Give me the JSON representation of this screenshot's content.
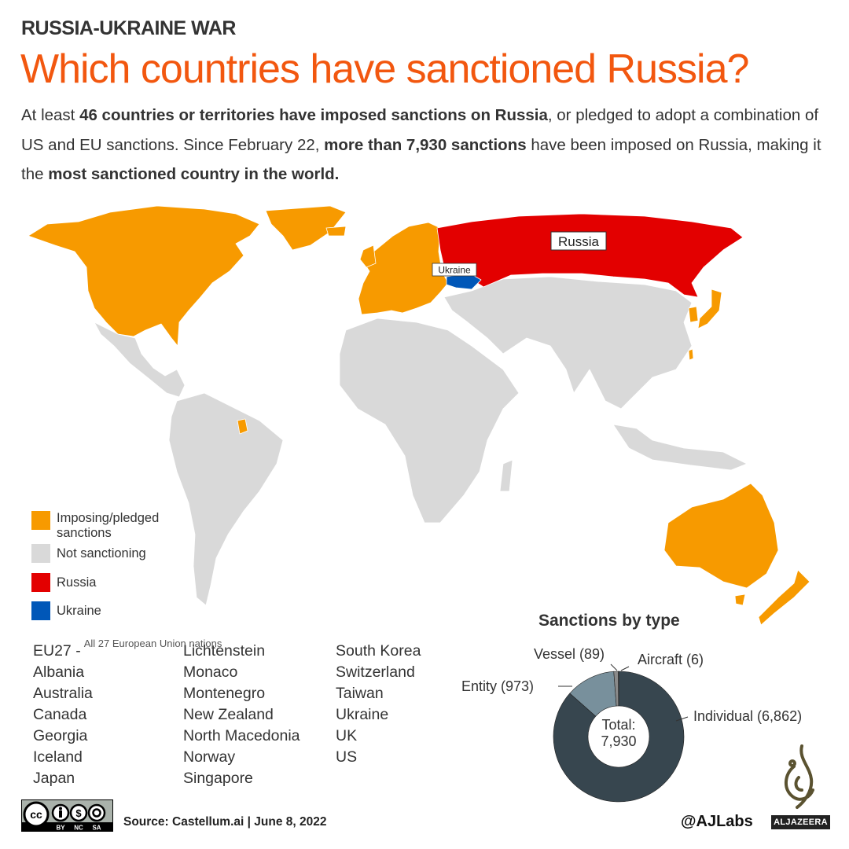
{
  "header": {
    "kicker": "RUSSIA-UKRAINE WAR",
    "title": "Which countries have sanctioned Russia?",
    "intro": [
      {
        "text": "At least ",
        "bold": false
      },
      {
        "text": "46 countries or territories have imposed sanctions on Russia",
        "bold": true
      },
      {
        "text": ", or pledged to adopt a combination of US and EU sanctions. Since February 22, ",
        "bold": false
      },
      {
        "text": "more than 7,930 sanctions",
        "bold": true
      },
      {
        "text": " have been imposed on Russia, making it the ",
        "bold": false
      },
      {
        "text": "most sanctioned country in the world.",
        "bold": true
      }
    ]
  },
  "map": {
    "labels": {
      "russia": "Russia",
      "ukraine": "Ukraine"
    },
    "colors": {
      "sanctioning": "#f79a00",
      "not_sanctioning": "#d9d9d9",
      "russia": "#e30000",
      "ukraine": "#0057b8"
    }
  },
  "legend": [
    {
      "label": "Imposing/pledged sanctions",
      "color": "#f79a00"
    },
    {
      "label": "Not sanctioning",
      "color": "#d9d9d9"
    },
    {
      "label": "Russia",
      "color": "#e30000"
    },
    {
      "label": "Ukraine",
      "color": "#0057b8"
    }
  ],
  "countries": {
    "eu_label": "EU27 -",
    "eu_note": "All 27 European Union nations",
    "col1": [
      "Albania",
      "Australia",
      "Canada",
      "Georgia",
      "Iceland",
      "Japan"
    ],
    "col2": [
      "Lichtenstein",
      "Monaco",
      "Montenegro",
      "New Zealand",
      "North Macedonia",
      "Norway",
      "Singapore"
    ],
    "col3": [
      "South Korea",
      "Switzerland",
      "Taiwan",
      "Ukraine",
      "UK",
      "US"
    ]
  },
  "chart_data": {
    "type": "pie",
    "title": "Sanctions by type",
    "total_label": "Total:",
    "total_value": "7,930",
    "slices": [
      {
        "name": "Individual",
        "value": 6862,
        "label": "Individual (6,862)",
        "color": "#37464f"
      },
      {
        "name": "Entity",
        "value": 973,
        "label": "Entity (973)",
        "color": "#78909c"
      },
      {
        "name": "Vessel",
        "value": 89,
        "label": "Vessel (89)",
        "color": "#8a8a8a"
      },
      {
        "name": "Aircraft",
        "value": 6,
        "label": "Aircraft (6)",
        "color": "#2a2a2a"
      }
    ]
  },
  "footer": {
    "license": "CC BY NC SA",
    "license_parts": [
      "BY",
      "NC",
      "SA"
    ],
    "source": "Source: Castellum.ai | June 8, 2022",
    "handle": "@AJLabs",
    "brand": "ALJAZEERA"
  }
}
